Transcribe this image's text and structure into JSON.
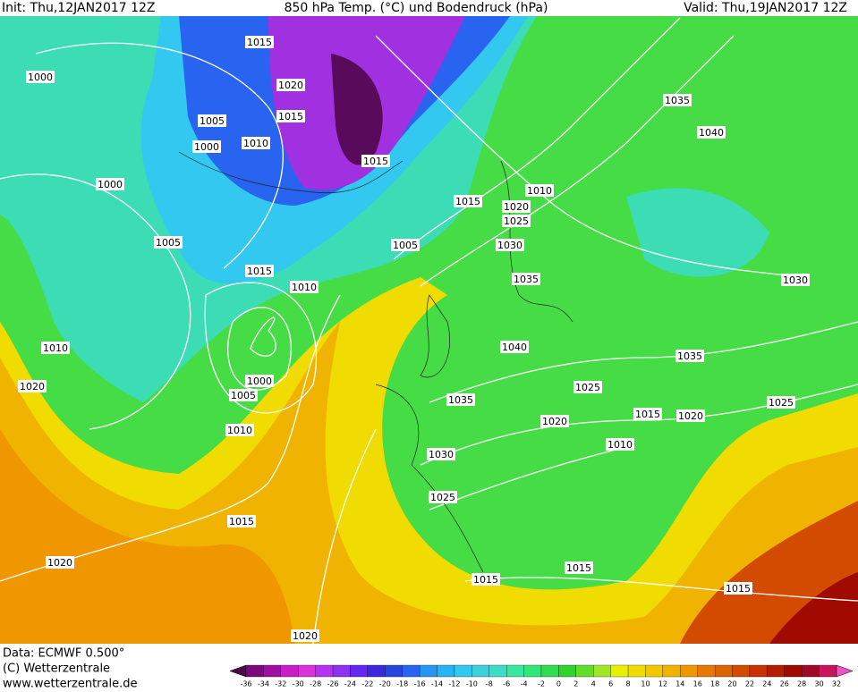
{
  "header": {
    "init": "Init: Thu,12JAN2017 12Z",
    "title": "850 hPa Temp. (°C) und Bodendruck (hPa)",
    "valid": "Valid: Thu,19JAN2017 12Z"
  },
  "footer": {
    "data": "Data: ECMWF   0.500°",
    "copyright": "(C) Wetterzentrale",
    "url": "www.wetterzentrale.de"
  },
  "colorbar": {
    "labels": [
      "-36",
      "-34",
      "-32",
      "-30",
      "-28",
      "-26",
      "-24",
      "-22",
      "-20",
      "-18",
      "-16",
      "-14",
      "-12",
      "-10",
      "-8",
      "-6",
      "-4",
      "-2",
      "0",
      "2",
      "4",
      "6",
      "8",
      "10",
      "12",
      "14",
      "16",
      "18",
      "20",
      "22",
      "24",
      "26",
      "28",
      "30",
      "32"
    ],
    "colors": [
      "#4b0a4b",
      "#7a0a7a",
      "#a010a0",
      "#c81ec8",
      "#dc32dc",
      "#b432f0",
      "#8c32f0",
      "#6428f0",
      "#3c28dc",
      "#2846dc",
      "#2864f0",
      "#2896f0",
      "#28b4f0",
      "#32c8f0",
      "#3cd2dc",
      "#3cdcc8",
      "#3ce6a0",
      "#32e678",
      "#32dc50",
      "#32d232",
      "#64dc28",
      "#a0e628",
      "#e6f000",
      "#f0dc00",
      "#f0c800",
      "#f0b400",
      "#f09600",
      "#e67800",
      "#dc6400",
      "#d24b00",
      "#c83200",
      "#b41e00",
      "#a00a00",
      "#a00a28",
      "#c8145a",
      "#f050c8"
    ]
  },
  "isobar_labels": [
    "1015",
    "1020",
    "1015",
    "1005",
    "1010",
    "1000",
    "1000",
    "1000",
    "1005",
    "1015",
    "1010",
    "1015",
    "1005",
    "1015",
    "1020",
    "1025",
    "1030",
    "1035",
    "1010",
    "1035",
    "1040",
    "1030",
    "1040",
    "1035",
    "1025",
    "1035",
    "1020",
    "1015",
    "1020",
    "1025",
    "1010",
    "1030",
    "1025",
    "1015",
    "1010",
    "1005",
    "1000",
    "1010",
    "1020",
    "1020",
    "1015",
    "1015",
    "1015",
    "1020"
  ]
}
